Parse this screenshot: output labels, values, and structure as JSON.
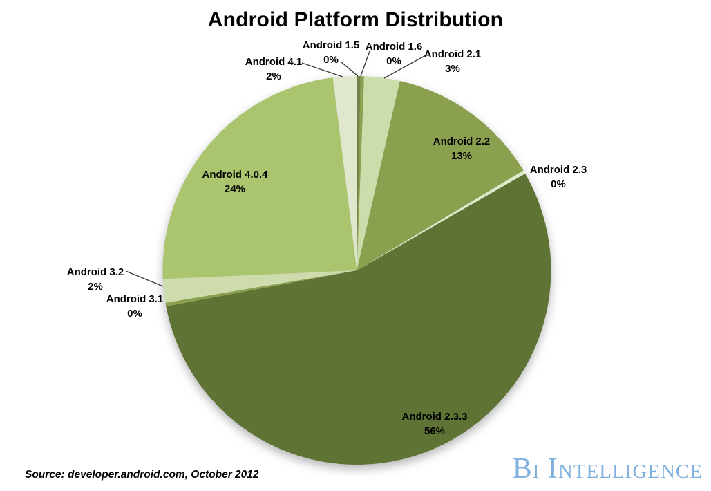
{
  "title": "Android Platform Distribution",
  "source_note": "Source: developer.android.com, October 2012",
  "logo": {
    "text": "Bi Intelligence",
    "color": "#7FB0DF"
  },
  "chart_data": {
    "type": "pie",
    "title": "Android Platform Distribution",
    "start_angle_deg": 0,
    "direction": "clockwise",
    "legend_position": "none",
    "labels_on_chart": true,
    "slices": [
      {
        "name": "Android 1.5",
        "value": 0,
        "pct_label": "0%",
        "color": "#72834A"
      },
      {
        "name": "Android 1.6",
        "value": 0,
        "pct_label": "0%",
        "color": "#8CA050"
      },
      {
        "name": "Android 2.1",
        "value": 3,
        "pct_label": "3%",
        "color": "#CCDCAA"
      },
      {
        "name": "Android 2.2",
        "value": 13,
        "pct_label": "13%",
        "color": "#8BA04F"
      },
      {
        "name": "Android 2.3",
        "value": 0,
        "pct_label": "0%",
        "color": "#DDE9C8"
      },
      {
        "name": "Android 2.3.3",
        "value": 56,
        "pct_label": "56%",
        "color": "#5F7334"
      },
      {
        "name": "Android 3.1",
        "value": 0,
        "pct_label": "0%",
        "color": "#8BA04F"
      },
      {
        "name": "Android 3.2",
        "value": 2,
        "pct_label": "2%",
        "color": "#CEDBAC"
      },
      {
        "name": "Android 4.0.4",
        "value": 24,
        "pct_label": "24%",
        "color": "#ABC46E"
      },
      {
        "name": "Android 4.1",
        "value": 2,
        "pct_label": "2%",
        "color": "#DFE8CD"
      }
    ]
  }
}
